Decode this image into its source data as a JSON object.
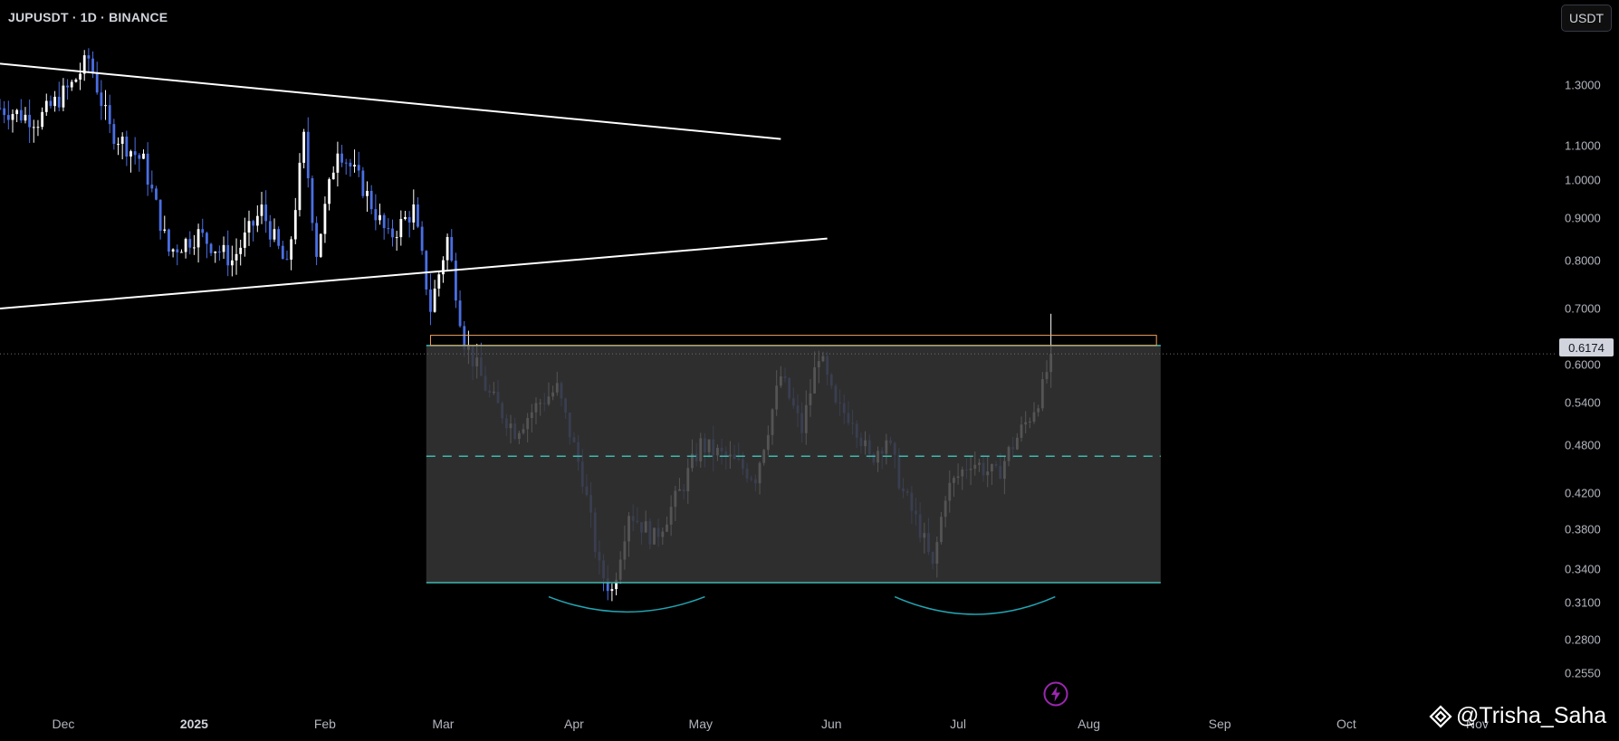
{
  "header": {
    "symbol_line": "JUPUSDT · 1D · BINANCE",
    "currency_button": "USDT"
  },
  "watermark": {
    "text": "@Trisha_Saha",
    "icon": "tradingview-logo-icon"
  },
  "colors": {
    "background": "#000000",
    "candle_up": "#ffffff",
    "candle_down": "#4a6fe3",
    "range_box": "#363636",
    "range_border": "#3fb8af",
    "resistance_box": "#f0a35e",
    "cup_arc": "#22a6b3",
    "trendline": "#ffffff",
    "replay_icon": "#9c27b0"
  },
  "chart_data": {
    "type": "candlestick",
    "title": "JUPUSDT · 1D · BINANCE",
    "y_scale": "log",
    "ylim": [
      0.24,
      1.55
    ],
    "xlim": [
      "2024-11-16",
      "2025-11-20"
    ],
    "last_price": "0.6174",
    "y_ticks": [
      "1.3000",
      "1.1000",
      "1.0000",
      "0.9000",
      "0.8000",
      "0.7000",
      "0.6000",
      "0.5400",
      "0.4800",
      "0.4200",
      "0.3800",
      "0.3400",
      "0.3100",
      "0.2800",
      "0.2550"
    ],
    "x_ticks": [
      {
        "date": "2024-12-01",
        "label": "Dec"
      },
      {
        "date": "2025-01-01",
        "label": "2025"
      },
      {
        "date": "2025-02-01",
        "label": "Feb"
      },
      {
        "date": "2025-03-01",
        "label": "Mar"
      },
      {
        "date": "2025-04-01",
        "label": "Apr"
      },
      {
        "date": "2025-05-01",
        "label": "May"
      },
      {
        "date": "2025-06-01",
        "label": "Jun"
      },
      {
        "date": "2025-07-01",
        "label": "Jul"
      },
      {
        "date": "2025-08-01",
        "label": "Aug"
      },
      {
        "date": "2025-09-01",
        "label": "Sep"
      },
      {
        "date": "2025-10-01",
        "label": "Oct"
      },
      {
        "date": "2025-11-01",
        "label": "Nov"
      }
    ],
    "close_path": [
      [
        "2024-11-16",
        1.22
      ],
      [
        "2024-11-25",
        1.18
      ],
      [
        "2024-12-03",
        1.3
      ],
      [
        "2024-12-07",
        1.4
      ],
      [
        "2024-12-12",
        1.15
      ],
      [
        "2024-12-20",
        1.05
      ],
      [
        "2024-12-26",
        0.82
      ],
      [
        "2025-01-02",
        0.86
      ],
      [
        "2025-01-10",
        0.8
      ],
      [
        "2025-01-17",
        0.92
      ],
      [
        "2025-01-23",
        0.78
      ],
      [
        "2025-01-27",
        1.12
      ],
      [
        "2025-01-30",
        0.82
      ],
      [
        "2025-02-04",
        1.1
      ],
      [
        "2025-02-10",
        0.98
      ],
      [
        "2025-02-16",
        0.85
      ],
      [
        "2025-02-22",
        0.92
      ],
      [
        "2025-02-26",
        0.7
      ],
      [
        "2025-03-02",
        0.85
      ],
      [
        "2025-03-06",
        0.64
      ],
      [
        "2025-03-12",
        0.55
      ],
      [
        "2025-03-18",
        0.5
      ],
      [
        "2025-03-24",
        0.54
      ],
      [
        "2025-03-28",
        0.56
      ],
      [
        "2025-04-03",
        0.44
      ],
      [
        "2025-04-07",
        0.34
      ],
      [
        "2025-04-10",
        0.32
      ],
      [
        "2025-04-14",
        0.4
      ],
      [
        "2025-04-20",
        0.37
      ],
      [
        "2025-04-26",
        0.42
      ],
      [
        "2025-05-01",
        0.48
      ],
      [
        "2025-05-08",
        0.46
      ],
      [
        "2025-05-14",
        0.44
      ],
      [
        "2025-05-20",
        0.58
      ],
      [
        "2025-05-25",
        0.5
      ],
      [
        "2025-05-29",
        0.62
      ],
      [
        "2025-06-02",
        0.53
      ],
      [
        "2025-06-06",
        0.52
      ],
      [
        "2025-06-10",
        0.46
      ],
      [
        "2025-06-14",
        0.49
      ],
      [
        "2025-06-18",
        0.42
      ],
      [
        "2025-06-22",
        0.38
      ],
      [
        "2025-06-25",
        0.34
      ],
      [
        "2025-06-28",
        0.42
      ],
      [
        "2025-07-04",
        0.46
      ],
      [
        "2025-07-10",
        0.44
      ],
      [
        "2025-07-14",
        0.48
      ],
      [
        "2025-07-18",
        0.52
      ],
      [
        "2025-07-21",
        0.56
      ],
      [
        "2025-07-23",
        0.6174
      ]
    ],
    "drawings": {
      "upper_trendline": {
        "from": [
          "2024-11-16",
          1.38
        ],
        "to": [
          "2025-05-20",
          1.12
        ]
      },
      "lower_trendline": {
        "from": [
          "2024-11-16",
          0.7
        ],
        "to": [
          "2025-05-31",
          0.85
        ]
      },
      "range_box": {
        "x": [
          "2025-02-25",
          "2025-08-18"
        ],
        "top": 0.632,
        "bottom": 0.3275,
        "mid": 0.465
      },
      "resistance_box": {
        "x": [
          "2025-02-26",
          "2025-08-17"
        ],
        "top": 0.65,
        "bottom": 0.632
      },
      "cup_arcs": [
        {
          "x": [
            "2025-03-26",
            "2025-05-02"
          ],
          "top": 0.315,
          "bottom": 0.302
        },
        {
          "x": [
            "2025-06-16",
            "2025-07-24"
          ],
          "top": 0.315,
          "bottom": 0.3
        }
      ]
    }
  }
}
